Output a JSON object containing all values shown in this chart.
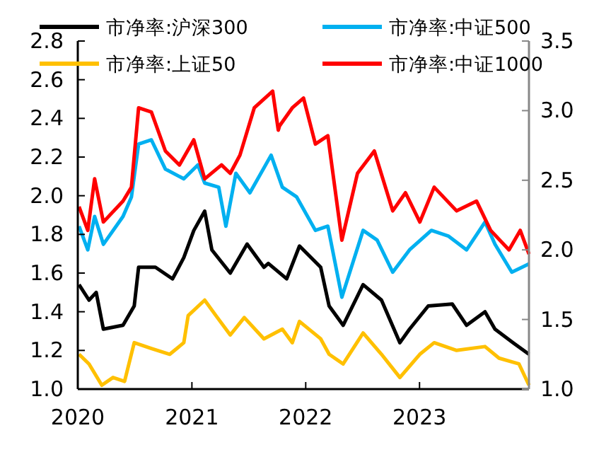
{
  "chart_data": {
    "type": "line",
    "xlim": [
      "2020-01-01",
      "2023-12-18"
    ],
    "xticks": [
      {
        "value": "2020-01-01",
        "label": "2020"
      },
      {
        "value": "2021-01-01",
        "label": "2021"
      },
      {
        "value": "2022-01-01",
        "label": "2022"
      },
      {
        "value": "2023-01-01",
        "label": "2023"
      }
    ],
    "ylim": [
      1.0,
      2.8
    ],
    "yticks": [
      {
        "value": 1.0,
        "label": "1.0"
      },
      {
        "value": 1.2,
        "label": "1.2"
      },
      {
        "value": 1.4,
        "label": "1.4"
      },
      {
        "value": 1.6,
        "label": "1.6"
      },
      {
        "value": 1.8,
        "label": "1.8"
      },
      {
        "value": 2.0,
        "label": "2.0"
      },
      {
        "value": 2.2,
        "label": "2.2"
      },
      {
        "value": 2.4,
        "label": "2.4"
      },
      {
        "value": 2.6,
        "label": "2.6"
      },
      {
        "value": 2.8,
        "label": "2.8"
      }
    ],
    "y2lim": [
      1.0,
      3.5
    ],
    "y2ticks": [
      {
        "value": 1.0,
        "label": "1.0"
      },
      {
        "value": 1.5,
        "label": "1.5"
      },
      {
        "value": 2.0,
        "label": "2.0"
      },
      {
        "value": 2.5,
        "label": "2.5"
      },
      {
        "value": 3.0,
        "label": "3.0"
      },
      {
        "value": 3.5,
        "label": "3.5"
      }
    ],
    "legend": "top",
    "grid": false,
    "series": [
      {
        "name": "市净率:沪深300",
        "color": "#000000",
        "x": [
          "2020-01-05",
          "2020-02-06",
          "2020-02-29",
          "2020-03-23",
          "2020-05-25",
          "2020-06-30",
          "2020-07-14",
          "2020-09-06",
          "2020-10-31",
          "2020-12-06",
          "2021-01-07",
          "2021-02-11",
          "2021-03-06",
          "2021-05-04",
          "2021-06-27",
          "2021-08-20",
          "2021-09-03",
          "2021-11-01",
          "2021-12-12",
          "2022-02-18",
          "2022-03-17",
          "2022-05-01",
          "2022-07-04",
          "2022-09-01",
          "2022-10-30",
          "2022-11-30",
          "2023-01-29",
          "2023-04-16",
          "2023-06-01",
          "2023-07-30",
          "2023-08-31",
          "2023-10-28",
          "2023-12-18"
        ],
        "values": [
          1.54,
          1.46,
          1.5,
          1.31,
          1.33,
          1.43,
          1.63,
          1.63,
          1.57,
          1.68,
          1.82,
          1.92,
          1.72,
          1.6,
          1.75,
          1.63,
          1.65,
          1.57,
          1.74,
          1.63,
          1.43,
          1.33,
          1.54,
          1.46,
          1.24,
          1.31,
          1.43,
          1.44,
          1.33,
          1.4,
          1.31,
          1.24,
          1.18
        ]
      },
      {
        "name": "市净率:中证500",
        "color": "#00b0f0",
        "axis": "y2",
        "x": [
          "2020-01-05",
          "2020-02-02",
          "2020-02-24",
          "2020-03-23",
          "2020-05-25",
          "2020-06-21",
          "2020-07-14",
          "2020-08-24",
          "2020-10-08",
          "2020-12-06",
          "2021-01-20",
          "2021-02-11",
          "2021-03-28",
          "2021-04-20",
          "2021-05-22",
          "2021-07-06",
          "2021-09-12",
          "2021-10-18",
          "2021-12-03",
          "2022-02-01",
          "2022-03-13",
          "2022-04-27",
          "2022-07-04",
          "2022-08-18",
          "2022-10-07",
          "2022-11-30",
          "2023-02-08",
          "2023-04-03",
          "2023-06-01",
          "2023-07-30",
          "2023-08-31",
          "2023-10-24",
          "2023-12-18"
        ],
        "values": [
          2.17,
          2.0,
          2.24,
          2.04,
          2.24,
          2.38,
          2.76,
          2.79,
          2.58,
          2.51,
          2.61,
          2.48,
          2.45,
          2.17,
          2.55,
          2.41,
          2.68,
          2.45,
          2.38,
          2.14,
          2.17,
          1.66,
          2.14,
          2.07,
          1.84,
          2.0,
          2.14,
          2.1,
          2.0,
          2.2,
          2.04,
          1.84,
          1.9
        ]
      },
      {
        "name": "市净率:上证50",
        "color": "#ffc000",
        "x": [
          "2020-01-05",
          "2020-02-06",
          "2020-03-18",
          "2020-04-23",
          "2020-05-30",
          "2020-06-30",
          "2020-08-24",
          "2020-10-22",
          "2020-12-06",
          "2020-12-20",
          "2021-02-11",
          "2021-03-19",
          "2021-05-04",
          "2021-06-18",
          "2021-08-20",
          "2021-10-18",
          "2021-11-19",
          "2021-12-12",
          "2022-02-18",
          "2022-03-17",
          "2022-05-01",
          "2022-07-04",
          "2022-09-01",
          "2022-10-30",
          "2023-01-02",
          "2023-02-17",
          "2023-04-30",
          "2023-07-30",
          "2023-09-13",
          "2023-11-16",
          "2023-12-18"
        ],
        "values": [
          1.18,
          1.13,
          1.02,
          1.06,
          1.04,
          1.24,
          1.21,
          1.18,
          1.24,
          1.38,
          1.46,
          1.38,
          1.28,
          1.37,
          1.26,
          1.31,
          1.24,
          1.35,
          1.26,
          1.18,
          1.13,
          1.29,
          1.18,
          1.06,
          1.18,
          1.24,
          1.2,
          1.22,
          1.16,
          1.13,
          1.02
        ]
      },
      {
        "name": "市净率:中证1000",
        "color": "#ff0000",
        "axis": "y2",
        "x": [
          "2020-01-05",
          "2020-02-02",
          "2020-02-24",
          "2020-03-23",
          "2020-05-25",
          "2020-06-21",
          "2020-07-14",
          "2020-08-24",
          "2020-10-08",
          "2020-11-22",
          "2021-01-07",
          "2021-02-11",
          "2021-04-06",
          "2021-05-04",
          "2021-06-04",
          "2021-07-20",
          "2021-09-17",
          "2021-10-05",
          "2021-10-09",
          "2021-11-19",
          "2021-12-25",
          "2022-02-01",
          "2022-03-13",
          "2022-04-27",
          "2022-06-16",
          "2022-08-09",
          "2022-10-07",
          "2022-11-17",
          "2023-01-02",
          "2023-02-17",
          "2023-04-30",
          "2023-07-03",
          "2023-08-17",
          "2023-10-15",
          "2023-11-20",
          "2023-12-18"
        ],
        "values": [
          2.31,
          2.14,
          2.51,
          2.2,
          2.35,
          2.45,
          3.02,
          2.99,
          2.71,
          2.61,
          2.79,
          2.51,
          2.61,
          2.55,
          2.68,
          3.02,
          3.14,
          2.86,
          2.89,
          3.02,
          3.09,
          2.76,
          2.82,
          2.07,
          2.55,
          2.71,
          2.28,
          2.41,
          2.2,
          2.45,
          2.28,
          2.35,
          2.14,
          2.0,
          2.14,
          1.97
        ]
      }
    ]
  }
}
